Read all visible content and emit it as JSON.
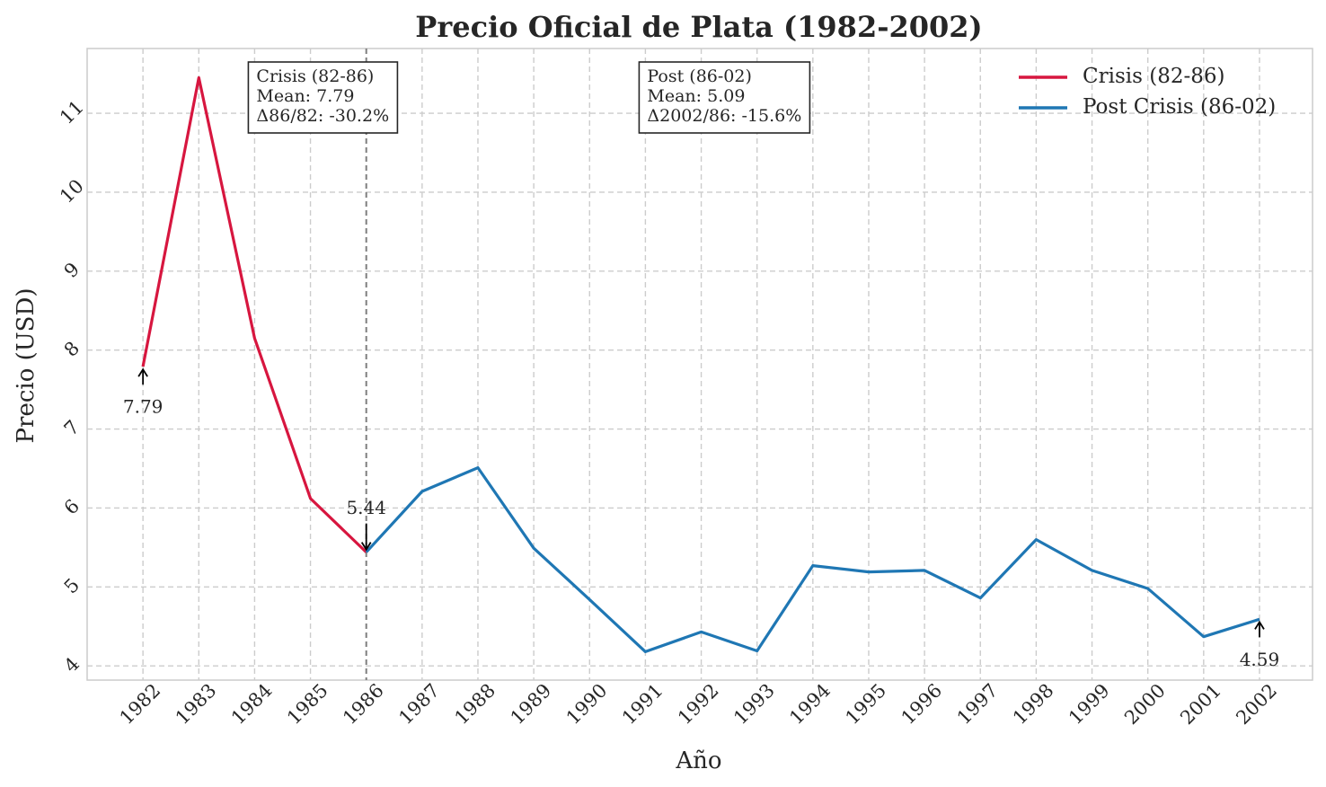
{
  "chart_data": {
    "type": "line",
    "title": "Precio Oficial de Plata (1982-2002)",
    "xlabel": "Año",
    "ylabel": "Precio (USD)",
    "x": [
      1982,
      1983,
      1984,
      1985,
      1986,
      1987,
      1988,
      1989,
      1990,
      1991,
      1992,
      1993,
      1994,
      1995,
      1996,
      1997,
      1998,
      1999,
      2000,
      2001,
      2002
    ],
    "x_tick_labels": [
      "1982",
      "1983",
      "1984",
      "1985",
      "1986",
      "1987",
      "1988",
      "1989",
      "1990",
      "1991",
      "1992",
      "1993",
      "1994",
      "1995",
      "1996",
      "1997",
      "1998",
      "1999",
      "2000",
      "2001",
      "2002"
    ],
    "y_ticks": [
      4,
      5,
      6,
      7,
      8,
      9,
      10,
      11
    ],
    "y_tick_labels": [
      "4",
      "5",
      "6",
      "7",
      "8",
      "9",
      "10",
      "11"
    ],
    "ylim": [
      3.82,
      11.82
    ],
    "xlim": [
      1981.0,
      2002.95
    ],
    "grid": true,
    "legend_position": "top-right",
    "series": [
      {
        "name": "Crisis (82-86)",
        "color": "#d7163f",
        "x": [
          1982,
          1983,
          1984,
          1985,
          1986
        ],
        "values": [
          7.79,
          11.45,
          8.15,
          6.12,
          5.44
        ]
      },
      {
        "name": "Post Crisis (86-02)",
        "color": "#1f77b4",
        "x": [
          1986,
          1987,
          1988,
          1989,
          1990,
          1991,
          1992,
          1993,
          1994,
          1995,
          1996,
          1997,
          1998,
          1999,
          2000,
          2001,
          2002
        ],
        "values": [
          5.44,
          6.21,
          6.51,
          5.49,
          4.84,
          4.18,
          4.43,
          4.19,
          5.27,
          5.19,
          5.21,
          4.86,
          5.6,
          5.21,
          4.98,
          4.37,
          4.59
        ]
      }
    ],
    "divider_x": 1986,
    "point_annotations": [
      {
        "x": 1982,
        "y": 7.79,
        "text": "7.79",
        "placement": "below"
      },
      {
        "x": 1986,
        "y": 5.44,
        "text": "5.44",
        "placement": "above"
      },
      {
        "x": 2002,
        "y": 4.59,
        "text": "4.59",
        "placement": "below"
      }
    ],
    "text_boxes": [
      {
        "lines": [
          "Crisis (82-86)",
          "Mean: 7.79",
          "Δ86/82: -30.2%"
        ],
        "anchor_x": 1984
      },
      {
        "lines": [
          "Post (86-02)",
          "Mean: 5.09",
          "Δ2002/86: -15.6%"
        ],
        "anchor_x": 1991
      }
    ]
  }
}
